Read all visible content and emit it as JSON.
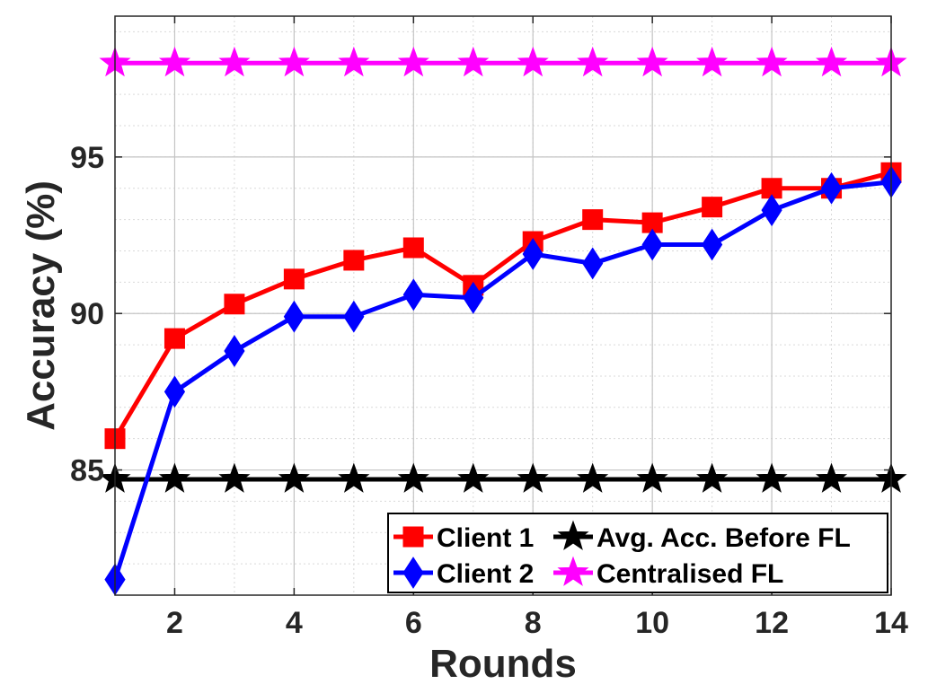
{
  "chart_data": {
    "type": "line",
    "title": "",
    "xlabel": "Rounds",
    "ylabel": "Accuracy (%)",
    "xlim": [
      1,
      14
    ],
    "ylim": [
      81,
      99.5
    ],
    "xticks": [
      2,
      4,
      6,
      8,
      10,
      12,
      14
    ],
    "yticks": [
      85,
      90,
      95
    ],
    "x_minor_step": 1,
    "y_minor_step": 1,
    "grid": true,
    "legend_position": "bottom-right",
    "x": [
      1,
      2,
      3,
      4,
      5,
      6,
      7,
      8,
      9,
      10,
      11,
      12,
      13,
      14
    ],
    "series": [
      {
        "name": "Client 1",
        "color": "#ff0000",
        "marker": "square",
        "values": [
          86.0,
          89.2,
          90.3,
          91.1,
          91.7,
          92.1,
          90.9,
          92.3,
          93.0,
          92.9,
          93.4,
          94.0,
          94.0,
          94.5
        ]
      },
      {
        "name": "Client 2",
        "color": "#0000ff",
        "marker": "diamond",
        "values": [
          81.5,
          87.5,
          88.8,
          89.9,
          89.9,
          90.6,
          90.5,
          91.9,
          91.6,
          92.2,
          92.2,
          93.3,
          94.0,
          94.2
        ]
      },
      {
        "name": "Avg. Acc. Before FL",
        "color": "#000000",
        "marker": "star",
        "values": [
          84.7,
          84.7,
          84.7,
          84.7,
          84.7,
          84.7,
          84.7,
          84.7,
          84.7,
          84.7,
          84.7,
          84.7,
          84.7,
          84.7
        ]
      },
      {
        "name": "Centralised FL",
        "color": "#ff00ff",
        "marker": "star",
        "values": [
          98.0,
          98.0,
          98.0,
          98.0,
          98.0,
          98.0,
          98.0,
          98.0,
          98.0,
          98.0,
          98.0,
          98.0,
          98.0,
          98.0
        ]
      }
    ],
    "legend_order": [
      0,
      2,
      1,
      3
    ]
  }
}
